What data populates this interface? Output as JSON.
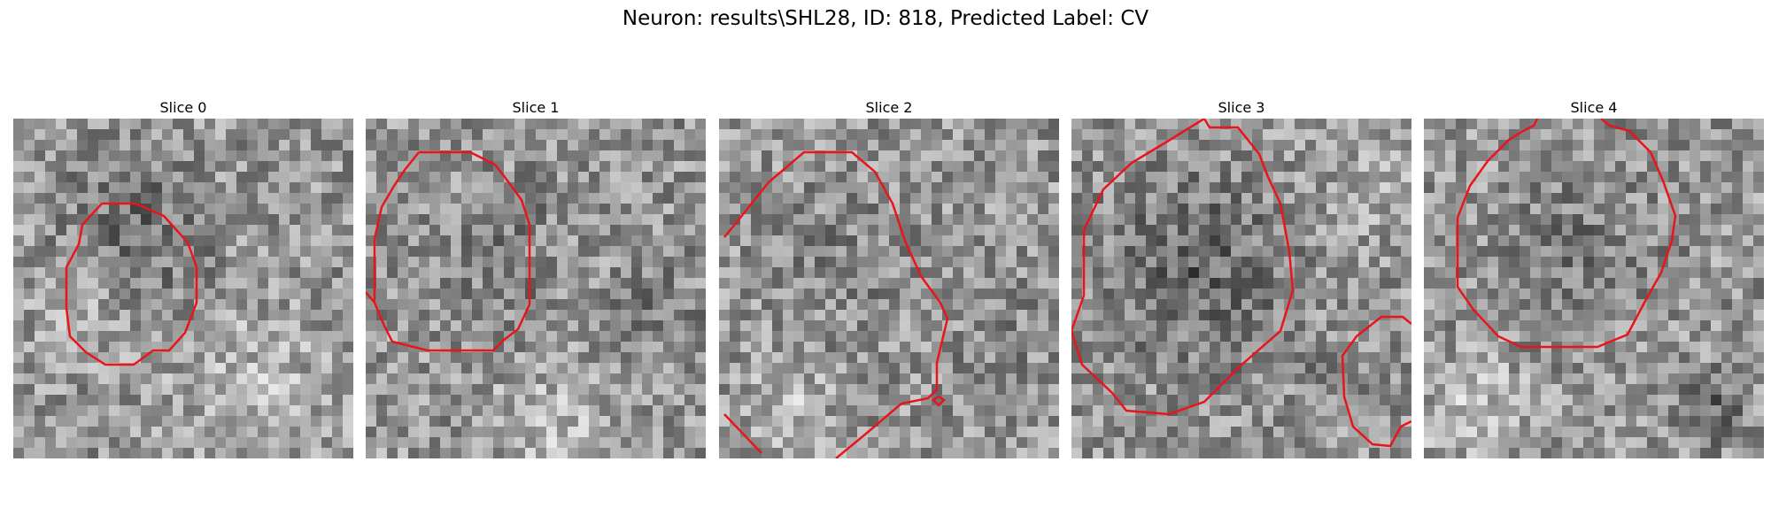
{
  "figure": {
    "title": "Neuron: results\\SHL28, ID: 818, Predicted Label: CV"
  },
  "panels": [
    {
      "title": "Slice 0",
      "contour_color": "#e8151b"
    },
    {
      "title": "Slice 1",
      "contour_color": "#e8151b"
    },
    {
      "title": "Slice 2",
      "contour_color": "#e8151b"
    },
    {
      "title": "Slice 3",
      "contour_color": "#e8151b"
    },
    {
      "title": "Slice 4",
      "contour_color": "#e8151b"
    }
  ],
  "image_style": {
    "colormap": "grayscale",
    "grid_cells": 32
  }
}
